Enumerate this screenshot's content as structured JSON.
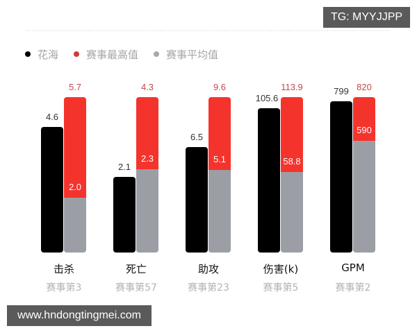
{
  "watermarks": {
    "top_right": "TG: MYYJJPP",
    "bottom_left": "www.hndongtingmei.com"
  },
  "colors": {
    "player": "#000000",
    "max": "#f5332d",
    "avg": "#9c9ea5",
    "max_label": "#c24a4a",
    "player_label": "#333333",
    "avg_label": "#ffffff"
  },
  "legend": [
    {
      "label": "花海",
      "color": "#000000"
    },
    {
      "label": "赛事最高值",
      "color": "#d03a3a"
    },
    {
      "label": "赛事平均值",
      "color": "#a8a8a8"
    }
  ],
  "chart_data": {
    "type": "bar",
    "title": "",
    "xlabel": "",
    "ylabel": "",
    "grid": false,
    "legend_position": "top-left",
    "normalization": "each category scaled so 赛事最高值 bar is full height",
    "categories": [
      "击杀",
      "死亡",
      "助攻",
      "伤害(k)",
      "GPM"
    ],
    "ranks": [
      "赛事第3",
      "赛事第57",
      "赛事第23",
      "赛事第5",
      "赛事第2"
    ],
    "series": [
      {
        "name": "花海",
        "values": [
          4.6,
          2.1,
          6.5,
          105.6,
          799
        ],
        "labels": [
          "4.6",
          "2.1",
          "6.5",
          "105.6",
          "799"
        ]
      },
      {
        "name": "赛事最高值",
        "values": [
          5.7,
          4.3,
          9.6,
          113.9,
          820
        ],
        "labels": [
          "5.7",
          "4.3",
          "9.6",
          "113.9",
          "820"
        ]
      },
      {
        "name": "赛事平均值",
        "values": [
          2.0,
          2.3,
          5.1,
          58.8,
          590
        ],
        "labels": [
          "2.0",
          "2.3",
          "5.1",
          "58.8",
          "590"
        ]
      }
    ]
  }
}
